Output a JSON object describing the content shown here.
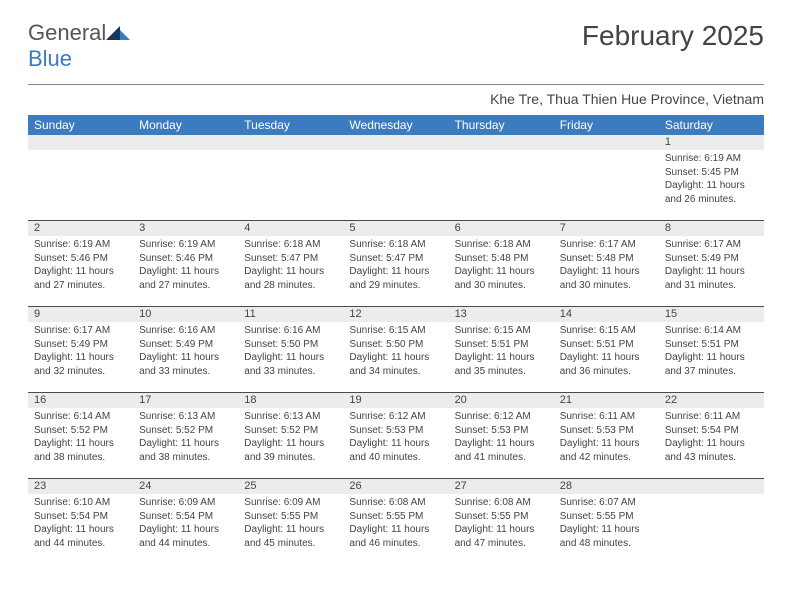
{
  "logo": {
    "text1": "General",
    "text2": "Blue"
  },
  "title": "February 2025",
  "location": "Khe Tre, Thua Thien Hue Province, Vietnam",
  "day_names": [
    "Sunday",
    "Monday",
    "Tuesday",
    "Wednesday",
    "Thursday",
    "Friday",
    "Saturday"
  ],
  "colors": {
    "header_bg": "#3b7bbf",
    "header_text": "#ffffff",
    "daynum_bg": "#ececec",
    "text": "#444444",
    "divider": "#4a4a4a"
  },
  "typography": {
    "title_fontsize": 28,
    "location_fontsize": 14,
    "dayheader_fontsize": 12,
    "cell_fontsize": 10
  },
  "weeks": [
    [
      {
        "n": "",
        "lines": []
      },
      {
        "n": "",
        "lines": []
      },
      {
        "n": "",
        "lines": []
      },
      {
        "n": "",
        "lines": []
      },
      {
        "n": "",
        "lines": []
      },
      {
        "n": "",
        "lines": []
      },
      {
        "n": "1",
        "lines": [
          "Sunrise: 6:19 AM",
          "Sunset: 5:45 PM",
          "Daylight: 11 hours and 26 minutes."
        ]
      }
    ],
    [
      {
        "n": "2",
        "lines": [
          "Sunrise: 6:19 AM",
          "Sunset: 5:46 PM",
          "Daylight: 11 hours and 27 minutes."
        ]
      },
      {
        "n": "3",
        "lines": [
          "Sunrise: 6:19 AM",
          "Sunset: 5:46 PM",
          "Daylight: 11 hours and 27 minutes."
        ]
      },
      {
        "n": "4",
        "lines": [
          "Sunrise: 6:18 AM",
          "Sunset: 5:47 PM",
          "Daylight: 11 hours and 28 minutes."
        ]
      },
      {
        "n": "5",
        "lines": [
          "Sunrise: 6:18 AM",
          "Sunset: 5:47 PM",
          "Daylight: 11 hours and 29 minutes."
        ]
      },
      {
        "n": "6",
        "lines": [
          "Sunrise: 6:18 AM",
          "Sunset: 5:48 PM",
          "Daylight: 11 hours and 30 minutes."
        ]
      },
      {
        "n": "7",
        "lines": [
          "Sunrise: 6:17 AM",
          "Sunset: 5:48 PM",
          "Daylight: 11 hours and 30 minutes."
        ]
      },
      {
        "n": "8",
        "lines": [
          "Sunrise: 6:17 AM",
          "Sunset: 5:49 PM",
          "Daylight: 11 hours and 31 minutes."
        ]
      }
    ],
    [
      {
        "n": "9",
        "lines": [
          "Sunrise: 6:17 AM",
          "Sunset: 5:49 PM",
          "Daylight: 11 hours and 32 minutes."
        ]
      },
      {
        "n": "10",
        "lines": [
          "Sunrise: 6:16 AM",
          "Sunset: 5:49 PM",
          "Daylight: 11 hours and 33 minutes."
        ]
      },
      {
        "n": "11",
        "lines": [
          "Sunrise: 6:16 AM",
          "Sunset: 5:50 PM",
          "Daylight: 11 hours and 33 minutes."
        ]
      },
      {
        "n": "12",
        "lines": [
          "Sunrise: 6:15 AM",
          "Sunset: 5:50 PM",
          "Daylight: 11 hours and 34 minutes."
        ]
      },
      {
        "n": "13",
        "lines": [
          "Sunrise: 6:15 AM",
          "Sunset: 5:51 PM",
          "Daylight: 11 hours and 35 minutes."
        ]
      },
      {
        "n": "14",
        "lines": [
          "Sunrise: 6:15 AM",
          "Sunset: 5:51 PM",
          "Daylight: 11 hours and 36 minutes."
        ]
      },
      {
        "n": "15",
        "lines": [
          "Sunrise: 6:14 AM",
          "Sunset: 5:51 PM",
          "Daylight: 11 hours and 37 minutes."
        ]
      }
    ],
    [
      {
        "n": "16",
        "lines": [
          "Sunrise: 6:14 AM",
          "Sunset: 5:52 PM",
          "Daylight: 11 hours and 38 minutes."
        ]
      },
      {
        "n": "17",
        "lines": [
          "Sunrise: 6:13 AM",
          "Sunset: 5:52 PM",
          "Daylight: 11 hours and 38 minutes."
        ]
      },
      {
        "n": "18",
        "lines": [
          "Sunrise: 6:13 AM",
          "Sunset: 5:52 PM",
          "Daylight: 11 hours and 39 minutes."
        ]
      },
      {
        "n": "19",
        "lines": [
          "Sunrise: 6:12 AM",
          "Sunset: 5:53 PM",
          "Daylight: 11 hours and 40 minutes."
        ]
      },
      {
        "n": "20",
        "lines": [
          "Sunrise: 6:12 AM",
          "Sunset: 5:53 PM",
          "Daylight: 11 hours and 41 minutes."
        ]
      },
      {
        "n": "21",
        "lines": [
          "Sunrise: 6:11 AM",
          "Sunset: 5:53 PM",
          "Daylight: 11 hours and 42 minutes."
        ]
      },
      {
        "n": "22",
        "lines": [
          "Sunrise: 6:11 AM",
          "Sunset: 5:54 PM",
          "Daylight: 11 hours and 43 minutes."
        ]
      }
    ],
    [
      {
        "n": "23",
        "lines": [
          "Sunrise: 6:10 AM",
          "Sunset: 5:54 PM",
          "Daylight: 11 hours and 44 minutes."
        ]
      },
      {
        "n": "24",
        "lines": [
          "Sunrise: 6:09 AM",
          "Sunset: 5:54 PM",
          "Daylight: 11 hours and 44 minutes."
        ]
      },
      {
        "n": "25",
        "lines": [
          "Sunrise: 6:09 AM",
          "Sunset: 5:55 PM",
          "Daylight: 11 hours and 45 minutes."
        ]
      },
      {
        "n": "26",
        "lines": [
          "Sunrise: 6:08 AM",
          "Sunset: 5:55 PM",
          "Daylight: 11 hours and 46 minutes."
        ]
      },
      {
        "n": "27",
        "lines": [
          "Sunrise: 6:08 AM",
          "Sunset: 5:55 PM",
          "Daylight: 11 hours and 47 minutes."
        ]
      },
      {
        "n": "28",
        "lines": [
          "Sunrise: 6:07 AM",
          "Sunset: 5:55 PM",
          "Daylight: 11 hours and 48 minutes."
        ]
      },
      {
        "n": "",
        "lines": []
      }
    ]
  ]
}
